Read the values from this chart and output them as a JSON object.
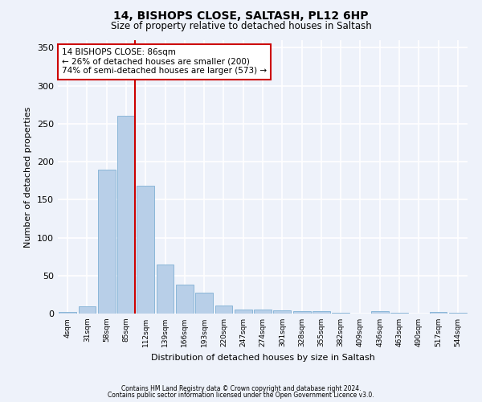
{
  "title1": "14, BISHOPS CLOSE, SALTASH, PL12 6HP",
  "title2": "Size of property relative to detached houses in Saltash",
  "xlabel": "Distribution of detached houses by size in Saltash",
  "ylabel": "Number of detached properties",
  "footnote1": "Contains HM Land Registry data © Crown copyright and database right 2024.",
  "footnote2": "Contains public sector information licensed under the Open Government Licence v3.0.",
  "annotation_line1": "14 BISHOPS CLOSE: 86sqm",
  "annotation_line2": "← 26% of detached houses are smaller (200)",
  "annotation_line3": "74% of semi-detached houses are larger (573) →",
  "bar_color": "#b8cfe8",
  "bar_edge_color": "#7fafd4",
  "background_color": "#eef2fa",
  "grid_color": "#ffffff",
  "red_line_color": "#cc0000",
  "annotation_box_facecolor": "#ffffff",
  "annotation_border_color": "#cc0000",
  "categories": [
    "4sqm",
    "31sqm",
    "58sqm",
    "85sqm",
    "112sqm",
    "139sqm",
    "166sqm",
    "193sqm",
    "220sqm",
    "247sqm",
    "274sqm",
    "301sqm",
    "328sqm",
    "355sqm",
    "382sqm",
    "409sqm",
    "436sqm",
    "463sqm",
    "490sqm",
    "517sqm",
    "544sqm"
  ],
  "values": [
    2,
    10,
    190,
    260,
    168,
    65,
    38,
    28,
    11,
    5,
    5,
    4,
    3,
    3,
    1,
    0,
    3,
    1,
    0,
    2,
    1
  ],
  "ylim": [
    0,
    360
  ],
  "yticks": [
    0,
    50,
    100,
    150,
    200,
    250,
    300,
    350
  ],
  "property_bin_index": 3
}
